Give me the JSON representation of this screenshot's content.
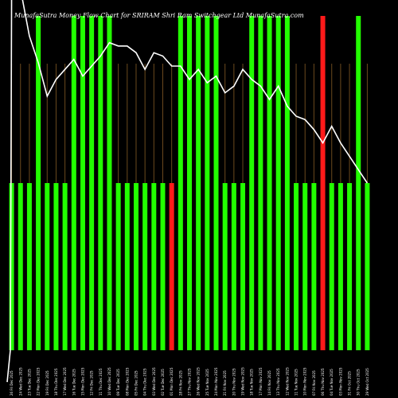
{
  "chart_data": {
    "type": "bar",
    "title": "MunafaSutra  Money  Flow  Chart for SRIRAM                    Shri   Ram Switchgear  Ltd MunafaSutra.com",
    "colors": {
      "background": "#000000",
      "positive": "#22ff00",
      "negative": "#ff1a1a",
      "grid": "#6b4a1e",
      "line": "#ffffff",
      "text": "#ffffff"
    },
    "ylim": [
      0,
      100
    ],
    "categories": [
      "26 Fri Dec 2025",
      "24 Wed Dec 2025",
      "23 Tue Dec 2025",
      "22 Mon Dec 2025",
      "19 Fri Dec 2025",
      "18 Thu Dec 2025",
      "17 Wed Dec 2025",
      "16 Tue Dec 2025",
      "15 Mon Dec 2025",
      "12 Fri Dec 2025",
      "11 Thu Dec 2025",
      "10 Wed Dec 2025",
      "09 Tue Dec 2025",
      "08 Mon Dec 2025",
      "05 Fri Dec 2025",
      "04 Thu Dec 2025",
      "03 Wed Dec 2025",
      "02 Tue Dec 2025",
      "01 Mon Dec 2025",
      "28 Fri Nov 2025",
      "27 Thu Nov 2025",
      "26 Wed Nov 2025",
      "25 Tue Nov 2025",
      "24 Mon Nov 2025",
      "21 Fri Nov 2025",
      "20 Thu Nov 2025",
      "19 Wed Nov 2025",
      "18 Tue Nov 2025",
      "17 Mon Nov 2025",
      "14 Fri Nov 2025",
      "13 Thu Nov 2025",
      "12 Wed Nov 2025",
      "11 Tue Nov 2025",
      "10 Mon Nov 2025",
      "07 Fri Nov 2025",
      "06 Thu Nov 2025",
      "04 Tue Nov 2025",
      "03 Mon Nov 2025",
      "31 Fri Oct 2025",
      "30 Thu Oct 2025",
      "29 Wed Oct 2025"
    ],
    "values": [
      50,
      50,
      50,
      100,
      50,
      50,
      50,
      100,
      100,
      100,
      100,
      100,
      50,
      50,
      50,
      50,
      50,
      50,
      50,
      100,
      100,
      100,
      100,
      100,
      50,
      50,
      50,
      100,
      100,
      100,
      100,
      100,
      50,
      50,
      50,
      100,
      50,
      50,
      50,
      100,
      50
    ],
    "bar_colors": [
      "green",
      "green",
      "green",
      "green",
      "green",
      "green",
      "green",
      "green",
      "green",
      "green",
      "green",
      "green",
      "green",
      "green",
      "green",
      "green",
      "green",
      "green",
      "red",
      "green",
      "green",
      "green",
      "green",
      "green",
      "green",
      "green",
      "green",
      "green",
      "green",
      "green",
      "green",
      "green",
      "green",
      "green",
      "green",
      "red",
      "green",
      "green",
      "green",
      "green",
      "green"
    ],
    "line_values": [
      108,
      108,
      94,
      86,
      76,
      81,
      84,
      87,
      82,
      85,
      88,
      92,
      91,
      91,
      89,
      84,
      89,
      88,
      85,
      85,
      81,
      84,
      80,
      82,
      77,
      79,
      84,
      81,
      79,
      75,
      79,
      73,
      70,
      69,
      66,
      62,
      67,
      62,
      58,
      54,
      50
    ]
  }
}
